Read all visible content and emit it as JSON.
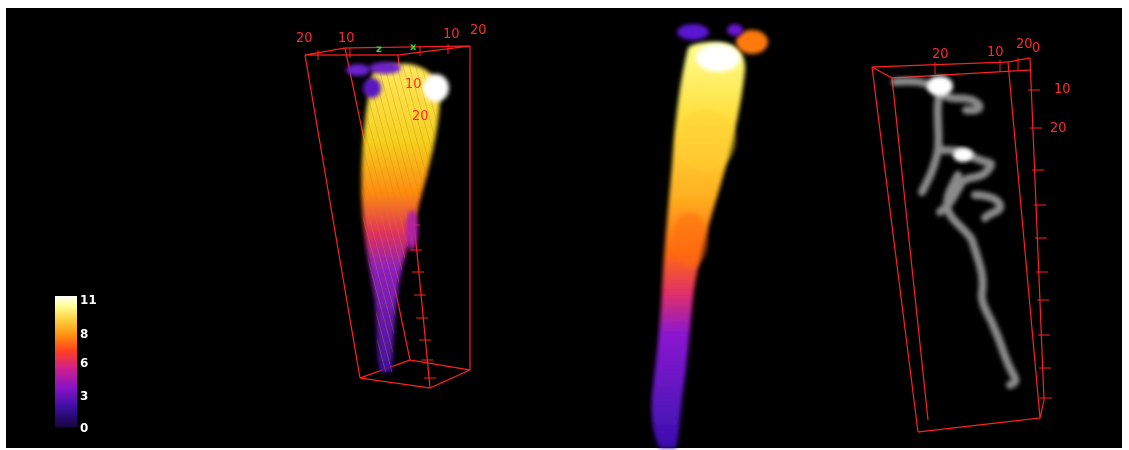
{
  "colors": {
    "frame": "#ff2020",
    "axis_letters": "#33dd33",
    "background": "#000000",
    "colormap": [
      "#1a0a5a",
      "#5a12c8",
      "#a010b8",
      "#e0206a",
      "#ff5a10",
      "#ff9a10",
      "#ffd030",
      "#ffff80",
      "#ffffff"
    ]
  },
  "left_panel": {
    "top_ticks": [
      "20",
      "10",
      "10",
      "20"
    ],
    "axis_letters": [
      "z",
      "x"
    ],
    "side_ticks": [
      "10",
      "20"
    ]
  },
  "right_panel": {
    "top_ticks": [
      "20",
      "10",
      "20",
      "0"
    ],
    "side_ticks": [
      "10",
      "20"
    ]
  },
  "colorbar": {
    "min": 0,
    "max": 11,
    "labels": [
      "11",
      "8",
      "6",
      "3",
      "0"
    ]
  }
}
